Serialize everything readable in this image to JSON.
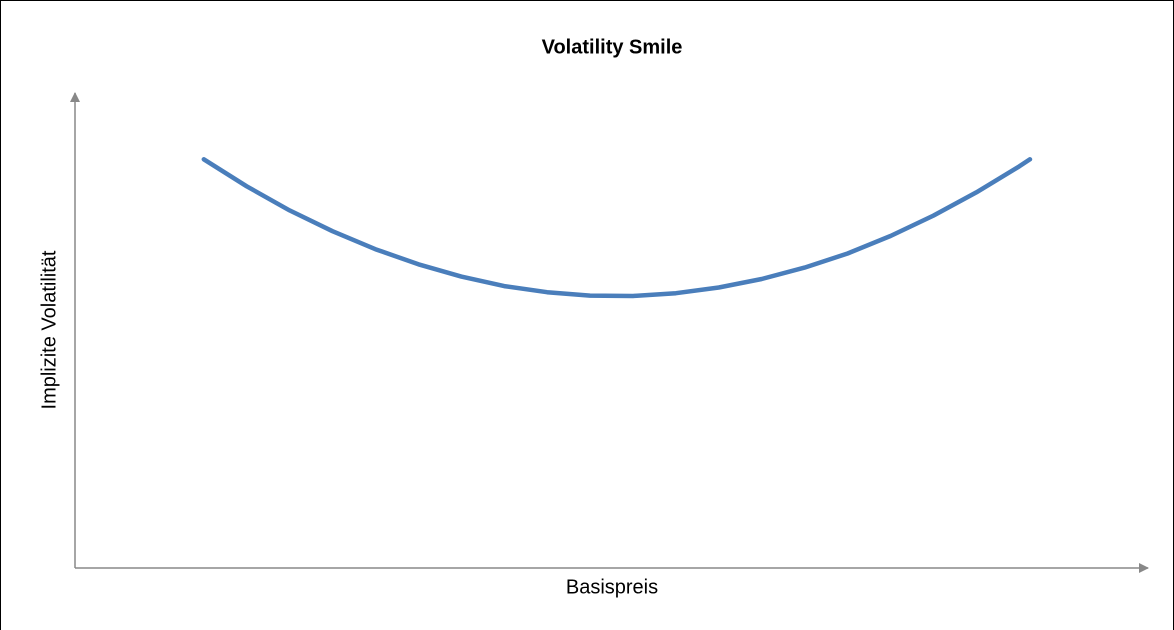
{
  "chart_data": {
    "type": "line",
    "title": "Volatility Smile",
    "x_label": "Basispreis",
    "y_label": "Implizite Volatilität",
    "x": [
      12,
      16,
      20,
      24,
      28,
      32,
      36,
      40,
      44,
      48,
      52,
      56,
      60,
      64,
      68,
      72,
      76,
      80,
      84,
      88,
      89
    ],
    "series": [
      {
        "name": "Volatility Smile",
        "color": "#4a7ebb",
        "values": [
          86.4,
          80.7,
          75.6,
          71.2,
          67.4,
          64.2,
          61.6,
          59.6,
          58.3,
          57.6,
          57.5,
          58.1,
          59.3,
          61.1,
          63.5,
          66.5,
          70.2,
          74.5,
          79.4,
          84.9,
          86.4
        ]
      }
    ],
    "xlim": [
      0,
      100
    ],
    "ylim": [
      0,
      100
    ]
  }
}
